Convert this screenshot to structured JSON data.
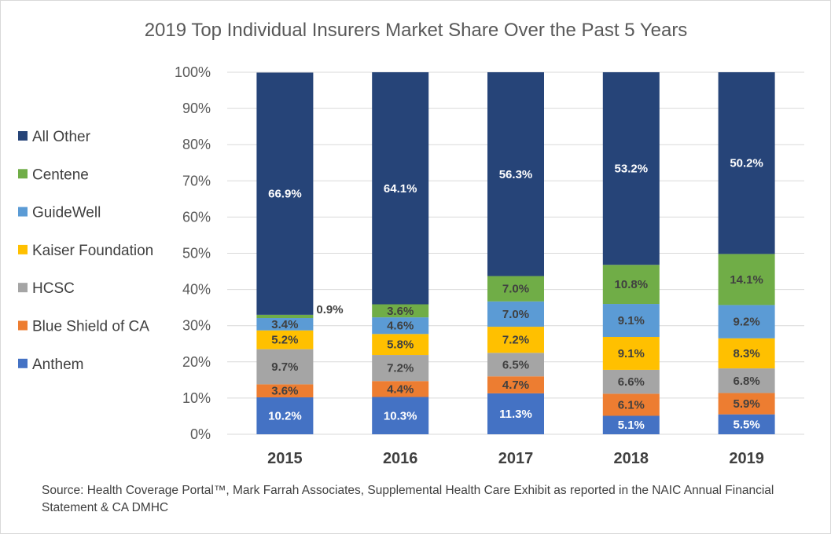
{
  "chart_data": {
    "type": "bar",
    "stacked": true,
    "title": "2019 Top Individual Insurers Market Share Over the Past 5 Years",
    "xlabel": "",
    "ylabel": "",
    "categories": [
      "2015",
      "2016",
      "2017",
      "2018",
      "2019"
    ],
    "y_ticks": [
      "0%",
      "10%",
      "20%",
      "30%",
      "40%",
      "50%",
      "60%",
      "70%",
      "80%",
      "90%",
      "100%"
    ],
    "ylim": [
      0,
      100
    ],
    "grid": true,
    "legend_position": "left",
    "series": [
      {
        "name": "Anthem",
        "color": "#4472c4",
        "values": [
          10.2,
          10.3,
          11.3,
          5.1,
          5.5
        ],
        "labels": [
          "10.2%",
          "10.3%",
          "11.3%",
          "5.1%",
          "5.5%"
        ],
        "label_color": "#ffffff"
      },
      {
        "name": "Blue Shield of CA",
        "color": "#ed7d31",
        "values": [
          3.6,
          4.4,
          4.7,
          6.1,
          5.9
        ],
        "labels": [
          "3.6%",
          "4.4%",
          "4.7%",
          "6.1%",
          "5.9%"
        ],
        "label_color": "#404040"
      },
      {
        "name": "HCSC",
        "color": "#a5a5a5",
        "values": [
          9.7,
          7.2,
          6.5,
          6.6,
          6.8
        ],
        "labels": [
          "9.7%",
          "7.2%",
          "6.5%",
          "6.6%",
          "6.8%"
        ],
        "label_color": "#404040"
      },
      {
        "name": "Kaiser Foundation",
        "color": "#ffc000",
        "values": [
          5.2,
          5.8,
          7.2,
          9.1,
          8.3
        ],
        "labels": [
          "5.2%",
          "5.8%",
          "7.2%",
          "9.1%",
          "8.3%"
        ],
        "label_color": "#404040"
      },
      {
        "name": "GuideWell",
        "color": "#5b9bd5",
        "values": [
          3.4,
          4.6,
          7.0,
          9.1,
          9.2
        ],
        "labels": [
          "3.4%",
          "4.6%",
          "7.0%",
          "9.1%",
          "9.2%"
        ],
        "label_color": "#404040"
      },
      {
        "name": "Centene",
        "color": "#70ad47",
        "values": [
          0.9,
          3.6,
          7.0,
          10.8,
          14.1
        ],
        "labels": [
          "0.9%",
          "3.6%",
          "7.0%",
          "10.8%",
          "14.1%"
        ],
        "label_color": "#404040"
      },
      {
        "name": "All Other",
        "color": "#264478",
        "values": [
          66.9,
          64.1,
          56.3,
          53.2,
          50.2
        ],
        "labels": [
          "66.9%",
          "64.1%",
          "56.3%",
          "53.2%",
          "50.2%"
        ],
        "label_color": "#ffffff"
      }
    ],
    "source": "Source: Health Coverage Portal™, Mark Farrah Associates, Supplemental Health Care Exhibit as reported in the NAIC Annual Financial Statement & CA DMHC"
  }
}
